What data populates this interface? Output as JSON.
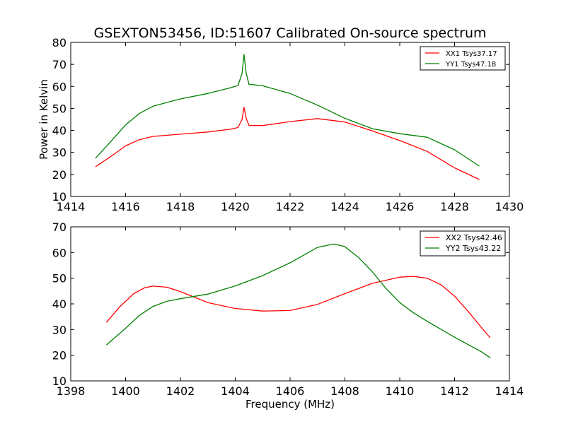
{
  "figure": {
    "title": "GSEXTON53456, ID:51607 Calibrated On-source spectrum"
  },
  "chart_data": [
    {
      "type": "line",
      "title": "GSEXTON53456, ID:51607 Calibrated On-source spectrum",
      "xlabel": "",
      "ylabel": "Power in Kelvin",
      "xlim": [
        1414,
        1430
      ],
      "ylim": [
        10,
        80
      ],
      "xticks": [
        1414,
        1416,
        1418,
        1420,
        1422,
        1424,
        1426,
        1428,
        1430
      ],
      "yticks": [
        10,
        20,
        30,
        40,
        50,
        60,
        70,
        80
      ],
      "legend": "top-right",
      "series": [
        {
          "name": "XX1 Tsys37.17",
          "color": "#ff0000",
          "x": [
            1414.9,
            1415.5,
            1416,
            1416.5,
            1417,
            1418,
            1419,
            1419.8,
            1420.1,
            1420.25,
            1420.32,
            1420.4,
            1420.5,
            1421,
            1422,
            1423,
            1424,
            1425,
            1426,
            1427,
            1428,
            1428.9
          ],
          "y": [
            23.5,
            28.5,
            33,
            35.8,
            37.3,
            38.3,
            39.3,
            40.5,
            41.3,
            45.0,
            50.5,
            45.5,
            42.3,
            42.2,
            44.0,
            45.4,
            43.8,
            39.8,
            35.4,
            30.5,
            23.0,
            17.7
          ]
        },
        {
          "name": "YY1 Tsys47.18",
          "color": "#008000",
          "x": [
            1414.9,
            1415.5,
            1416,
            1416.5,
            1417,
            1418,
            1419,
            1419.8,
            1420.1,
            1420.25,
            1420.32,
            1420.4,
            1420.5,
            1421,
            1422,
            1423,
            1424,
            1425,
            1426,
            1427,
            1428,
            1428.9
          ],
          "y": [
            27.3,
            35.5,
            42.5,
            47.7,
            51.0,
            54.3,
            56.8,
            59.3,
            60.4,
            66.0,
            74.5,
            66.0,
            61.0,
            60.3,
            56.8,
            51.5,
            45.5,
            40.8,
            38.5,
            36.9,
            31.2,
            23.8
          ]
        }
      ]
    },
    {
      "type": "line",
      "title": "",
      "xlabel": "Frequency (MHz)",
      "ylabel": "",
      "xlim": [
        1398,
        1414
      ],
      "ylim": [
        10,
        70
      ],
      "xticks": [
        1398,
        1400,
        1402,
        1404,
        1406,
        1408,
        1410,
        1412,
        1414
      ],
      "yticks": [
        10,
        20,
        30,
        40,
        50,
        60,
        70
      ],
      "legend": "top-right",
      "series": [
        {
          "name": "XX2 Tsys42.46",
          "color": "#ff0000",
          "x": [
            1399.3,
            1399.8,
            1400.3,
            1400.7,
            1401,
            1401.5,
            1402,
            1403,
            1404,
            1405,
            1406,
            1407,
            1408,
            1409,
            1410,
            1410.5,
            1411,
            1411.5,
            1412,
            1412.5,
            1413,
            1413.3
          ],
          "y": [
            32.8,
            39.0,
            44.0,
            46.3,
            46.9,
            46.5,
            44.8,
            40.5,
            38.2,
            37.2,
            37.4,
            39.8,
            44.0,
            48.0,
            50.4,
            50.7,
            50.0,
            47.5,
            43.0,
            37.0,
            30.5,
            26.8
          ]
        },
        {
          "name": "YY2 Tsys43.22",
          "color": "#008000",
          "x": [
            1399.3,
            1400,
            1400.5,
            1401,
            1401.5,
            1402,
            1403,
            1404,
            1405,
            1406,
            1407,
            1407.6,
            1408,
            1408.5,
            1409,
            1409.5,
            1410,
            1410.5,
            1411,
            1412,
            1413,
            1413.3
          ],
          "y": [
            24.0,
            30.5,
            35.5,
            39.0,
            41.0,
            42.0,
            43.8,
            47.0,
            51.0,
            56.0,
            62.0,
            63.3,
            62.3,
            58.0,
            52.5,
            46.0,
            40.5,
            36.5,
            33.2,
            27.0,
            21.2,
            19.0
          ]
        }
      ]
    }
  ]
}
